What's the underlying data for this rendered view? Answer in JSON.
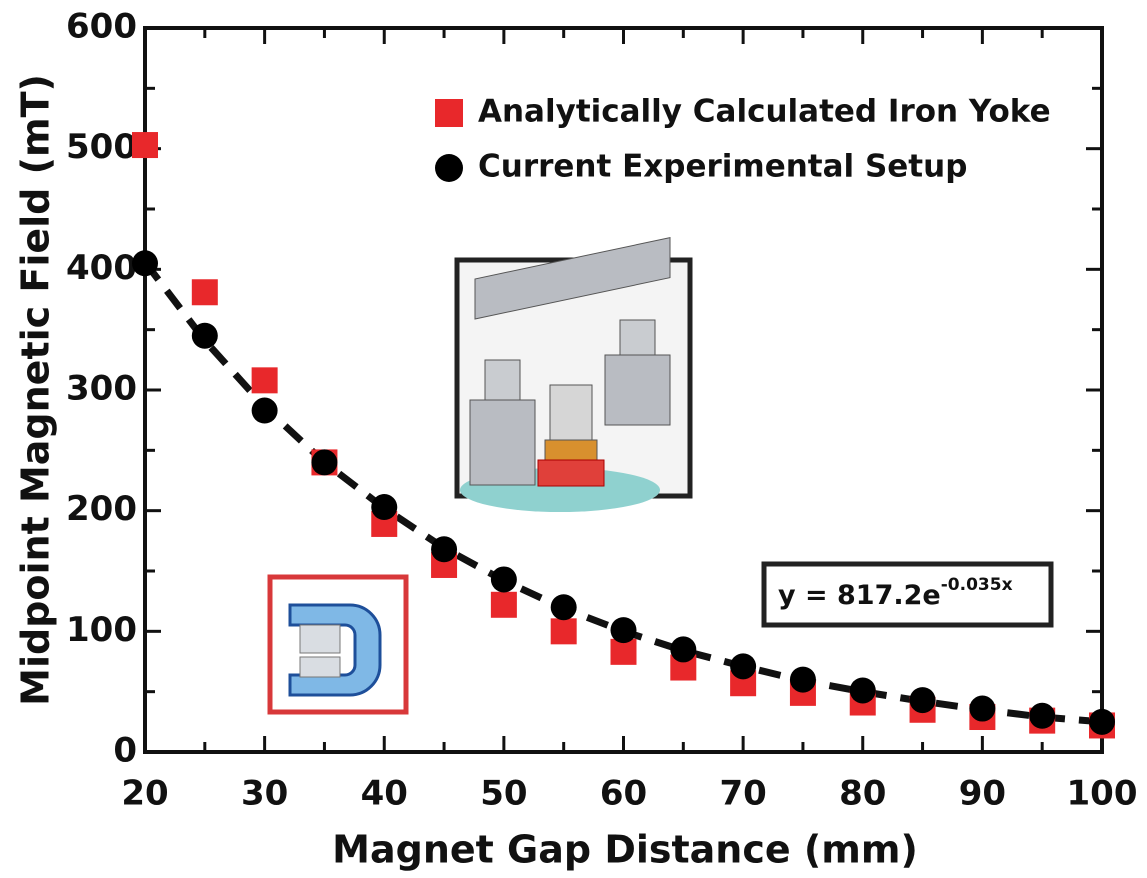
{
  "chart_data": {
    "type": "scatter",
    "x_label": "Magnet Gap Distance (mm)",
    "y_label": "Midpoint Magnetic Field (mT)",
    "x": [
      20,
      25,
      30,
      35,
      40,
      45,
      50,
      55,
      60,
      65,
      70,
      75,
      80,
      85,
      90,
      95,
      100
    ],
    "series": [
      {
        "name": "Analytically Calculated Iron Yoke",
        "color": "#e8282b",
        "marker": "square",
        "values": [
          503,
          381,
          308,
          240,
          189,
          155,
          122,
          100,
          83,
          70,
          57,
          49,
          41,
          35,
          29,
          26,
          22
        ]
      },
      {
        "name": "Current Experimental Setup",
        "color": "#000000",
        "marker": "circle",
        "values": [
          405,
          345,
          283,
          240,
          203,
          168,
          143,
          120,
          101,
          85,
          71,
          60,
          51,
          43,
          36,
          30,
          25
        ]
      }
    ],
    "fit": {
      "equation": "y = 817.2e",
      "exponent": "-0.035x",
      "color": "#111111",
      "values": [
        406,
        341,
        286,
        240,
        202,
        169,
        142,
        119,
        100,
        84,
        71,
        59,
        50,
        42,
        35,
        29,
        25
      ]
    },
    "xlim": [
      20,
      100
    ],
    "ylim": [
      0,
      600
    ],
    "xticks": [
      20,
      30,
      40,
      50,
      60,
      70,
      80,
      90,
      100
    ],
    "yticks": [
      0,
      100,
      200,
      300,
      400,
      500,
      600
    ],
    "xticks_minor": [
      25,
      35,
      45,
      55,
      65,
      75,
      85,
      95
    ],
    "yticks_minor": [
      50,
      150,
      250,
      350,
      450,
      550
    ],
    "legend": "upper right"
  }
}
